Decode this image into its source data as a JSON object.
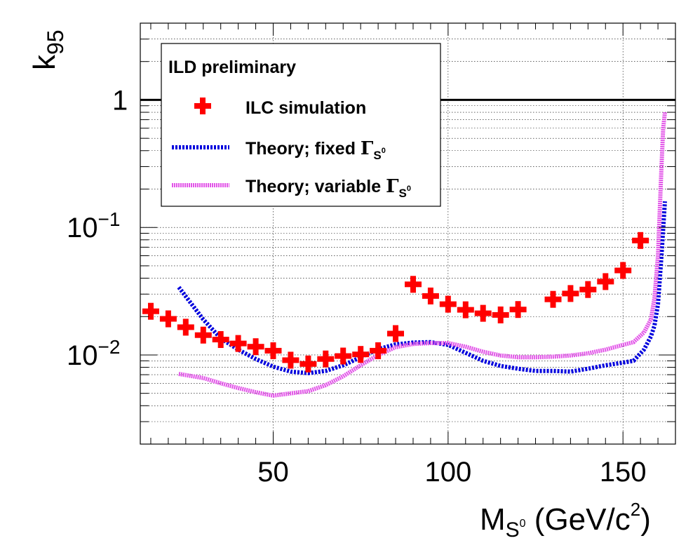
{
  "chart_data": {
    "type": "line",
    "title": "",
    "xlabel": "M",
    "xlabel_sub": "S",
    "xlabel_sub_sup": "0",
    "xlabel_unit": " (GeV/c",
    "xlabel_unit_sup": "2",
    "xlabel_unit_close": ")",
    "ylabel": "k",
    "ylabel_sub": "95",
    "xlim": [
      12,
      165
    ],
    "ylim": [
      0.002,
      4
    ],
    "yscale": "log",
    "grid": true,
    "x_ticks": [
      {
        "value": 50,
        "label": "50"
      },
      {
        "value": 100,
        "label": "100"
      },
      {
        "value": 150,
        "label": "150"
      }
    ],
    "y_ticks": [
      {
        "value": 0.01,
        "base": "10",
        "exp": "−2"
      },
      {
        "value": 0.1,
        "base": "10",
        "exp": "−1"
      },
      {
        "value": 1,
        "base": "1",
        "exp": ""
      }
    ],
    "reference_line": {
      "y": 1,
      "color": "#000000"
    },
    "legend": {
      "position": "top-left",
      "header": "ILD preliminary",
      "entries": [
        {
          "label": "ILC simulation",
          "symbol": "cross",
          "color": "#ff0000"
        },
        {
          "label": "Theory; fixed ",
          "symbol": "line",
          "color": "#0000dd",
          "gamma": "Γ",
          "gamma_sub": "S",
          "gamma_sup": "0"
        },
        {
          "label": "Theory; variable ",
          "symbol": "line",
          "color": "#e255e8",
          "gamma": "Γ",
          "gamma_sub": "S",
          "gamma_sup": "0"
        }
      ]
    },
    "series": [
      {
        "name": "ILC simulation",
        "type": "markers",
        "color": "#ff0000",
        "x": [
          15,
          20,
          25,
          30,
          35,
          40,
          45,
          50,
          55,
          60,
          65,
          70,
          75,
          80,
          85,
          90,
          95,
          100,
          105,
          110,
          115,
          120,
          130,
          135,
          140,
          145,
          150,
          155
        ],
        "y": [
          0.022,
          0.0192,
          0.0165,
          0.0143,
          0.0132,
          0.0123,
          0.0116,
          0.0108,
          0.0091,
          0.0085,
          0.0093,
          0.0098,
          0.0101,
          0.0108,
          0.0147,
          0.0358,
          0.029,
          0.025,
          0.0226,
          0.0212,
          0.0206,
          0.0227,
          0.0273,
          0.0303,
          0.0326,
          0.0376,
          0.046,
          0.079
        ]
      },
      {
        "name": "Theory; fixed",
        "type": "line",
        "color": "#0000dd",
        "x": [
          23,
          26,
          30,
          35,
          40,
          45,
          50,
          55,
          60,
          65,
          70,
          75,
          80,
          85,
          90,
          95,
          100,
          105,
          110,
          115,
          120,
          125,
          130,
          135,
          140,
          145,
          150,
          153,
          156,
          158,
          159,
          160,
          161,
          162
        ],
        "y": [
          0.034,
          0.0265,
          0.019,
          0.0135,
          0.011,
          0.0093,
          0.0081,
          0.0074,
          0.0072,
          0.0075,
          0.0083,
          0.0096,
          0.0111,
          0.0121,
          0.0125,
          0.0126,
          0.012,
          0.0104,
          0.009,
          0.0082,
          0.0078,
          0.0075,
          0.0075,
          0.0074,
          0.0078,
          0.0083,
          0.0087,
          0.009,
          0.011,
          0.014,
          0.017,
          0.025,
          0.06,
          0.16
        ]
      },
      {
        "name": "Theory; variable",
        "type": "line",
        "color": "#e255e8",
        "x": [
          23,
          30,
          35,
          40,
          45,
          50,
          55,
          60,
          65,
          70,
          75,
          80,
          85,
          90,
          95,
          100,
          105,
          110,
          115,
          120,
          125,
          130,
          135,
          140,
          145,
          150,
          153,
          156,
          158,
          159,
          160,
          161,
          161.5,
          162
        ],
        "y": [
          0.0071,
          0.0066,
          0.006,
          0.0055,
          0.0051,
          0.0048,
          0.005,
          0.0052,
          0.0058,
          0.0068,
          0.0083,
          0.01,
          0.0115,
          0.0122,
          0.0124,
          0.0124,
          0.0116,
          0.0106,
          0.0099,
          0.0096,
          0.0096,
          0.0097,
          0.0099,
          0.0103,
          0.011,
          0.012,
          0.0126,
          0.015,
          0.019,
          0.028,
          0.06,
          0.3,
          0.6,
          0.8
        ]
      }
    ]
  }
}
